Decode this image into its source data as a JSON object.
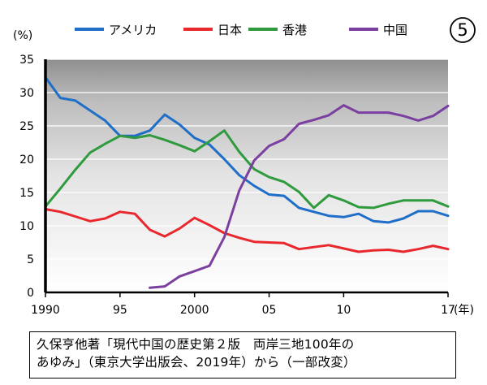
{
  "badge": "⑤",
  "caption": {
    "line1": "久保亨他著「現代中国の歴史第２版　両岸三地100年の",
    "line2": "あゆみ」（東京大学出版会、2019年）から（一部改変）"
  },
  "chart_data": {
    "type": "line",
    "ylabel": "(%)",
    "xlabel": "(年)",
    "ylim": [
      0,
      35
    ],
    "xlim": [
      1990,
      2017
    ],
    "yticks": [
      0,
      5,
      10,
      15,
      20,
      25,
      30,
      35
    ],
    "xticks": [
      {
        "value": 1990,
        "label": "1990"
      },
      {
        "value": 1995,
        "label": "95"
      },
      {
        "value": 2000,
        "label": "2000"
      },
      {
        "value": 2005,
        "label": "05"
      },
      {
        "value": 2010,
        "label": "10"
      },
      {
        "value": 2017,
        "label": "17"
      }
    ],
    "grid": true,
    "legend_position": "top",
    "series": [
      {
        "name": "アメリカ",
        "color": "#1f6fc8",
        "x": [
          1990,
          1991,
          1992,
          1993,
          1994,
          1995,
          1996,
          1997,
          1998,
          1999,
          2000,
          2001,
          2002,
          2003,
          2004,
          2005,
          2006,
          2007,
          2008,
          2009,
          2010,
          2011,
          2012,
          2013,
          2014,
          2015,
          2016,
          2017
        ],
        "y": [
          32.3,
          29.2,
          28.8,
          27.3,
          25.8,
          23.5,
          23.5,
          24.3,
          26.7,
          25.2,
          23.2,
          22.2,
          20.0,
          17.6,
          16.0,
          14.7,
          14.5,
          12.7,
          12.1,
          11.5,
          11.3,
          11.8,
          10.7,
          10.5,
          11.1,
          12.2,
          12.2,
          11.5
        ]
      },
      {
        "name": "日本",
        "color": "#e8282d",
        "x": [
          1990,
          1991,
          1992,
          1993,
          1994,
          1995,
          1996,
          1997,
          1998,
          1999,
          2000,
          2001,
          2002,
          2003,
          2004,
          2005,
          2006,
          2007,
          2008,
          2009,
          2010,
          2011,
          2012,
          2013,
          2014,
          2015,
          2016,
          2017
        ],
        "y": [
          12.5,
          12.1,
          11.4,
          10.7,
          11.1,
          12.1,
          11.8,
          9.4,
          8.4,
          9.6,
          11.2,
          10.1,
          8.9,
          8.2,
          7.6,
          7.5,
          7.4,
          6.5,
          6.8,
          7.1,
          6.6,
          6.1,
          6.3,
          6.4,
          6.1,
          6.5,
          7.0,
          6.5
        ]
      },
      {
        "name": "香港",
        "color": "#2f9a3e",
        "x": [
          1990,
          1991,
          1992,
          1993,
          1994,
          1995,
          1996,
          1997,
          1998,
          1999,
          2000,
          2001,
          2002,
          2003,
          2004,
          2005,
          2006,
          2007,
          2008,
          2009,
          2010,
          2011,
          2012,
          2013,
          2014,
          2015,
          2016,
          2017
        ],
        "y": [
          12.9,
          15.6,
          18.4,
          21.0,
          22.3,
          23.5,
          23.2,
          23.6,
          22.9,
          22.1,
          21.2,
          22.7,
          24.3,
          21.1,
          18.5,
          17.3,
          16.6,
          15.1,
          12.7,
          14.6,
          13.8,
          12.8,
          12.7,
          13.3,
          13.8,
          13.8,
          13.8,
          12.9
        ]
      },
      {
        "name": "中国",
        "color": "#7b3fa0",
        "x": [
          1997,
          1998,
          1999,
          2000,
          2001,
          2002,
          2003,
          2004,
          2005,
          2006,
          2007,
          2008,
          2009,
          2010,
          2011,
          2012,
          2013,
          2014,
          2015,
          2016,
          2017
        ],
        "y": [
          0.7,
          0.9,
          2.4,
          3.2,
          4.0,
          8.3,
          15.3,
          19.8,
          22.0,
          23.0,
          25.3,
          25.9,
          26.6,
          28.1,
          27.0,
          27.0,
          27.0,
          26.5,
          25.8,
          26.5,
          28.0
        ]
      }
    ]
  }
}
